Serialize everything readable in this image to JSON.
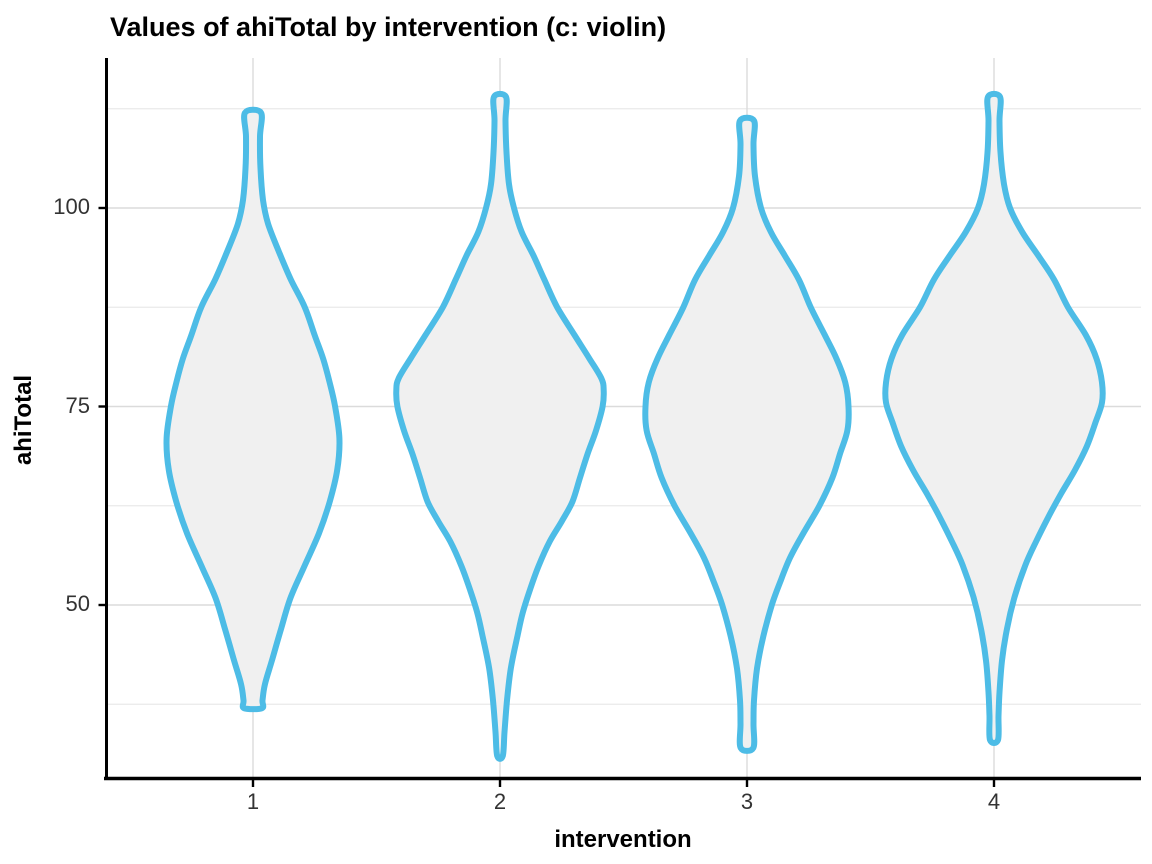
{
  "title": "Values of ahiTotal by intervention (c: violin)",
  "chart_data": {
    "type": "violin",
    "title": "Values of ahiTotal by intervention (c: violin)",
    "xlabel": "intervention",
    "ylabel": "ahiTotal",
    "categories": [
      "1",
      "2",
      "3",
      "4"
    ],
    "y_ticks": [
      100,
      75,
      50
    ],
    "y_minor_gridlines": [
      112.5,
      87.5,
      62.5,
      37.5
    ],
    "ylim": [
      28,
      119
    ],
    "grid": true,
    "legend_position": "none",
    "panel_background": "#ffffff",
    "colors": {
      "violin_stroke": "#4DBCE6",
      "violin_fill": "#F0F0F0",
      "grid_major": "#DBDBDB",
      "grid_minor": "#EAEAEA",
      "axis_line": "#000000",
      "tick_text": "#333333",
      "title_text": "#000000"
    },
    "violins": [
      {
        "category": "1",
        "min": 37,
        "max": 112,
        "peak_value": 71,
        "profile": [
          [
            112,
            0.074
          ],
          [
            109,
            0.065
          ],
          [
            105,
            0.069
          ],
          [
            101,
            0.093
          ],
          [
            98,
            0.14
          ],
          [
            94.5,
            0.24
          ],
          [
            91,
            0.35
          ],
          [
            87.5,
            0.48
          ],
          [
            84,
            0.57
          ],
          [
            81,
            0.65
          ],
          [
            78,
            0.71
          ],
          [
            75,
            0.76
          ],
          [
            71,
            0.8
          ],
          [
            67,
            0.78
          ],
          [
            63,
            0.71
          ],
          [
            59,
            0.61
          ],
          [
            55,
            0.48
          ],
          [
            51,
            0.35
          ],
          [
            47,
            0.26
          ],
          [
            43,
            0.175
          ],
          [
            40,
            0.11
          ],
          [
            38,
            0.088
          ],
          [
            37,
            0.083
          ]
        ]
      },
      {
        "category": "2",
        "min": 31,
        "max": 114,
        "peak_value": 77.5,
        "profile": [
          [
            114,
            0.056
          ],
          [
            111,
            0.051
          ],
          [
            107,
            0.06
          ],
          [
            103,
            0.083
          ],
          [
            100,
            0.13
          ],
          [
            97,
            0.2
          ],
          [
            94,
            0.31
          ],
          [
            91,
            0.41
          ],
          [
            87.5,
            0.53
          ],
          [
            84,
            0.69
          ],
          [
            81,
            0.83
          ],
          [
            78.5,
            0.94
          ],
          [
            77,
            0.96
          ],
          [
            75,
            0.95
          ],
          [
            72,
            0.89
          ],
          [
            69,
            0.81
          ],
          [
            66,
            0.74
          ],
          [
            63,
            0.67
          ],
          [
            60.5,
            0.57
          ],
          [
            58,
            0.46
          ],
          [
            55,
            0.36
          ],
          [
            52,
            0.28
          ],
          [
            49,
            0.21
          ],
          [
            46,
            0.16
          ],
          [
            42,
            0.1
          ],
          [
            38,
            0.065
          ],
          [
            34,
            0.042
          ],
          [
            31,
            0.026
          ]
        ]
      },
      {
        "category": "3",
        "min": 32,
        "max": 111,
        "peak_value": 75,
        "profile": [
          [
            111,
            0.065
          ],
          [
            108,
            0.06
          ],
          [
            104,
            0.074
          ],
          [
            100,
            0.13
          ],
          [
            97,
            0.22
          ],
          [
            94,
            0.35
          ],
          [
            91,
            0.48
          ],
          [
            87.5,
            0.59
          ],
          [
            84,
            0.72
          ],
          [
            81,
            0.83
          ],
          [
            78,
            0.91
          ],
          [
            75,
            0.94
          ],
          [
            72,
            0.93
          ],
          [
            69,
            0.86
          ],
          [
            66,
            0.79
          ],
          [
            62.5,
            0.67
          ],
          [
            59,
            0.52
          ],
          [
            56,
            0.4
          ],
          [
            53,
            0.31
          ],
          [
            50,
            0.23
          ],
          [
            46,
            0.15
          ],
          [
            42,
            0.093
          ],
          [
            38,
            0.065
          ],
          [
            35,
            0.06
          ],
          [
            32,
            0.058
          ]
        ]
      },
      {
        "category": "4",
        "min": 33,
        "max": 114,
        "peak_value": 77,
        "profile": [
          [
            114,
            0.056
          ],
          [
            111,
            0.051
          ],
          [
            107,
            0.06
          ],
          [
            103,
            0.093
          ],
          [
            100,
            0.148
          ],
          [
            97,
            0.26
          ],
          [
            94,
            0.41
          ],
          [
            91,
            0.556
          ],
          [
            87.5,
            0.685
          ],
          [
            84,
            0.85
          ],
          [
            81,
            0.95
          ],
          [
            78,
            1.0
          ],
          [
            75.5,
            1.0
          ],
          [
            73,
            0.94
          ],
          [
            70,
            0.86
          ],
          [
            67,
            0.75
          ],
          [
            64,
            0.62
          ],
          [
            61,
            0.5
          ],
          [
            58,
            0.39
          ],
          [
            55,
            0.29
          ],
          [
            51,
            0.19
          ],
          [
            47,
            0.12
          ],
          [
            43,
            0.074
          ],
          [
            39,
            0.051
          ],
          [
            36,
            0.042
          ],
          [
            33,
            0.037
          ]
        ]
      }
    ]
  }
}
